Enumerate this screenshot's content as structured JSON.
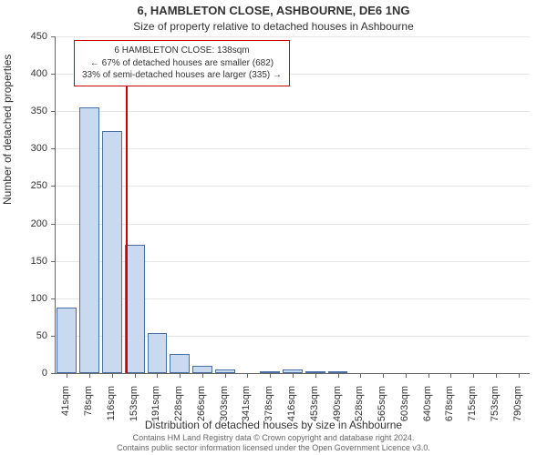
{
  "title": "6, HAMBLETON CLOSE, ASHBOURNE, DE6 1NG",
  "subtitle": "Size of property relative to detached houses in Ashbourne",
  "y_axis_label": "Number of detached properties",
  "x_axis_label": "Distribution of detached houses by size in Ashbourne",
  "footer_line1": "Contains HM Land Registry data © Crown copyright and database right 2024.",
  "footer_line2": "Contains public sector information licensed under the Open Government Licence v3.0.",
  "chart": {
    "type": "bar",
    "background_color": "#ffffff",
    "grid_color": "#e5e5e5",
    "axis_color": "#666666",
    "bar_fill": "#c9d9ef",
    "bar_stroke": "#4a6fa5",
    "marker_color": "#cc0000",
    "tick_fontsize": 11,
    "label_fontsize": 12,
    "title_fontsize": 13,
    "ylim": [
      0,
      450
    ],
    "ytick_step": 50,
    "yticks": [
      0,
      50,
      100,
      150,
      200,
      250,
      300,
      350,
      400,
      450
    ],
    "categories": [
      "41sqm",
      "78sqm",
      "116sqm",
      "153sqm",
      "191sqm",
      "228sqm",
      "266sqm",
      "303sqm",
      "341sqm",
      "378sqm",
      "416sqm",
      "453sqm",
      "490sqm",
      "528sqm",
      "565sqm",
      "603sqm",
      "640sqm",
      "678sqm",
      "715sqm",
      "753sqm",
      "790sqm"
    ],
    "values": [
      88,
      355,
      323,
      172,
      53,
      25,
      10,
      5,
      0,
      3,
      5,
      3,
      3,
      0,
      0,
      0,
      0,
      0,
      0,
      0,
      0
    ],
    "bar_width_ratio": 0.88,
    "marker": {
      "value_sqm": 138,
      "bin_low": 116,
      "bin_high": 153,
      "fraction_in_bin": 0.595,
      "lines": [
        "6 HAMBLETON CLOSE: 138sqm",
        "← 67% of detached houses are smaller (682)",
        "33% of semi-detached houses are larger (335) →"
      ]
    }
  }
}
